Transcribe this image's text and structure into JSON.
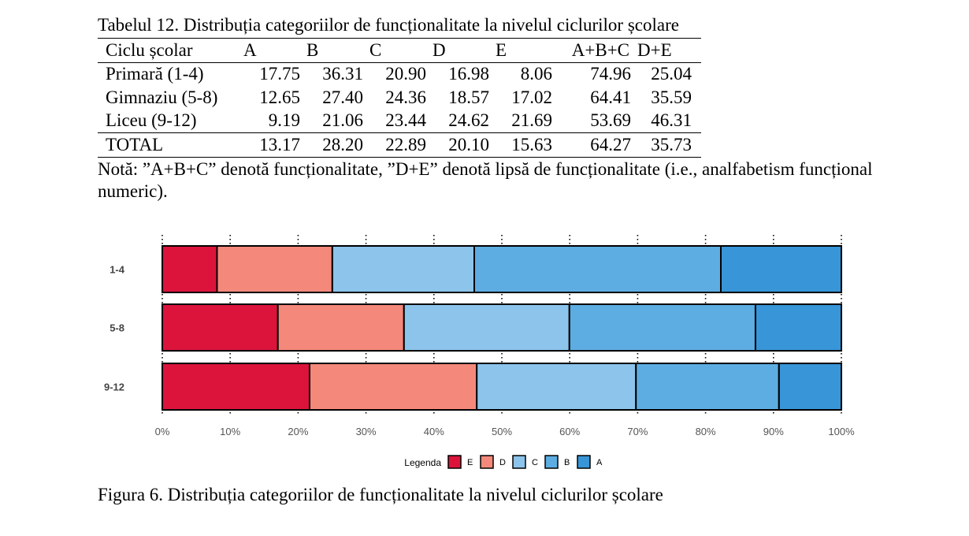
{
  "table": {
    "caption": "Tabelul 12. Distribuția categoriilor de funcționalitate la nivelul ciclurilor școlare",
    "headers": [
      "Ciclu școlar",
      "A",
      "B",
      "C",
      "D",
      "E",
      "A+B+C",
      "D+E"
    ],
    "rows": [
      [
        "Primară (1-4)",
        "17.75",
        "36.31",
        "20.90",
        "16.98",
        "8.06",
        "74.96",
        "25.04"
      ],
      [
        "Gimnaziu (5-8)",
        "12.65",
        "27.40",
        "24.36",
        "18.57",
        "17.02",
        "64.41",
        "35.59"
      ],
      [
        "Liceu (9-12)",
        "9.19",
        "21.06",
        "23.44",
        "24.62",
        "21.69",
        "53.69",
        "46.31"
      ],
      [
        "TOTAL",
        "13.17",
        "28.20",
        "22.89",
        "20.10",
        "15.63",
        "64.27",
        "35.73"
      ]
    ],
    "note": "Notă: ”A+B+C” denotă funcționalitate, ”D+E” denotă lipsă de funcționalitate (i.e., analfabetism funcțional numeric)."
  },
  "figure": {
    "caption": "Figura 6.  Distribuția categoriilor de funcționalitate la nivelul ciclurilor școlare"
  },
  "chart_data": {
    "type": "bar",
    "orientation": "horizontal",
    "stacked": true,
    "categories": [
      "1-4",
      "5-8",
      "9-12"
    ],
    "series": [
      {
        "name": "E",
        "color": "#DC143C",
        "values": [
          8.06,
          17.02,
          21.69
        ]
      },
      {
        "name": "D",
        "color": "#F4897B",
        "values": [
          16.98,
          18.57,
          24.62
        ]
      },
      {
        "name": "C",
        "color": "#8CC4EB",
        "values": [
          20.9,
          24.36,
          23.44
        ]
      },
      {
        "name": "B",
        "color": "#5DADE2",
        "values": [
          36.31,
          27.4,
          21.06
        ]
      },
      {
        "name": "A",
        "color": "#3795D8",
        "values": [
          17.75,
          12.65,
          9.19
        ]
      }
    ],
    "xlim": [
      0,
      100
    ],
    "xticks": [
      "0%",
      "10%",
      "20%",
      "30%",
      "40%",
      "50%",
      "60%",
      "70%",
      "80%",
      "90%",
      "100%"
    ],
    "legend_title": "Legenda",
    "legend_position": "bottom",
    "grid": "vertical dotted"
  }
}
